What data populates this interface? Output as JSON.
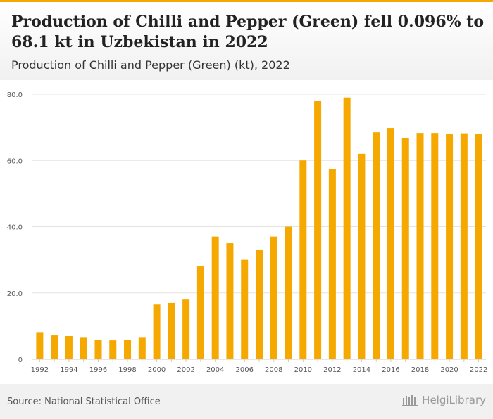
{
  "header": {
    "title": "Production of Chilli and Pepper (Green) fell 0.096% to 68.1 kt in Uzbekistan in 2022",
    "subtitle": "Production of Chilli and Pepper (Green) (kt), 2022"
  },
  "footer": {
    "source": "Source: National Statistical Office",
    "brand": "HelgiLibrary"
  },
  "colors": {
    "bar": "#f5a800",
    "grid": "#e3e3e3",
    "axis_text": "#555555"
  },
  "chart_data": {
    "type": "bar",
    "title": "",
    "xlabel": "",
    "ylabel": "",
    "ylim": [
      0,
      80
    ],
    "grid": true,
    "yticks": [
      "0",
      "20.0",
      "40.0",
      "60.0",
      "80.0"
    ],
    "ytick_values": [
      0,
      20,
      40,
      60,
      80
    ],
    "xtick_labels": [
      "1992",
      "1994",
      "1996",
      "1998",
      "2000",
      "2002",
      "2004",
      "2006",
      "2008",
      "2010",
      "2012",
      "2014",
      "2016",
      "2018",
      "2020",
      "2022"
    ],
    "categories": [
      "1992",
      "1993",
      "1994",
      "1995",
      "1996",
      "1997",
      "1998",
      "1999",
      "2000",
      "2001",
      "2002",
      "2003",
      "2004",
      "2005",
      "2006",
      "2007",
      "2008",
      "2009",
      "2010",
      "2011",
      "2012",
      "2013",
      "2014",
      "2015",
      "2016",
      "2017",
      "2018",
      "2019",
      "2020",
      "2021",
      "2022"
    ],
    "values": [
      8.2,
      7.2,
      7.0,
      6.5,
      5.8,
      5.7,
      5.8,
      6.5,
      16.5,
      17.0,
      18.0,
      28.0,
      37.0,
      35.0,
      30.0,
      33.0,
      37.0,
      40.0,
      60.0,
      78.0,
      57.3,
      79.0,
      62.0,
      68.5,
      69.8,
      66.8,
      68.3,
      68.3,
      67.9,
      68.2,
      68.1
    ]
  }
}
